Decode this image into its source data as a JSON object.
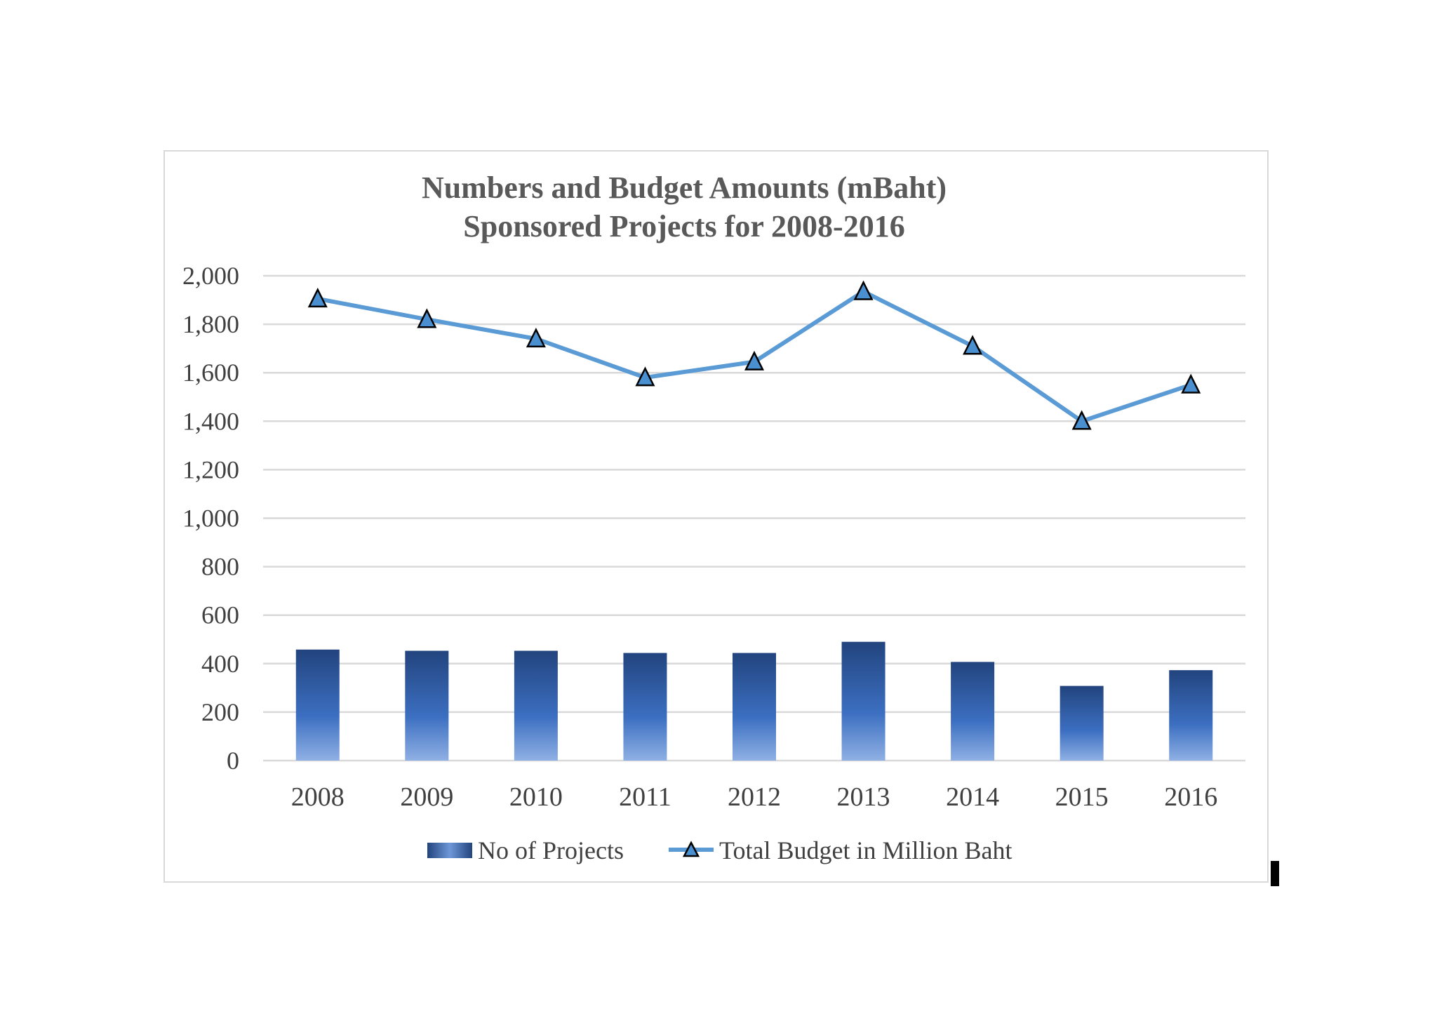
{
  "chart_data": {
    "type": "bar+line",
    "title": [
      "Numbers and Budget Amounts (mBaht)",
      "Sponsored Projects for 2008-2016"
    ],
    "categories": [
      "2008",
      "2009",
      "2010",
      "2011",
      "2012",
      "2013",
      "2014",
      "2015",
      "2016"
    ],
    "ylim": [
      0,
      2000
    ],
    "yticks": [
      0,
      200,
      400,
      600,
      800,
      1000,
      1200,
      1400,
      1600,
      1800,
      2000
    ],
    "ytick_labels": [
      "0",
      "200",
      "400",
      "600",
      "800",
      "1,000",
      "1,200",
      "1,400",
      "1,600",
      "1,800",
      "2,000"
    ],
    "grid": true,
    "legend_position": "bottom",
    "series": [
      {
        "name": "No of Projects",
        "type": "bar",
        "values": [
          458,
          453,
          453,
          444,
          444,
          490,
          407,
          308,
          373
        ]
      },
      {
        "name": "Total Budget in Million Baht",
        "type": "line",
        "marker": "triangle",
        "values": [
          1905,
          1820,
          1740,
          1580,
          1645,
          1935,
          1710,
          1400,
          1550
        ]
      }
    ],
    "colors": {
      "bar_top": "#22447e",
      "bar_mid": "#3c6fc1",
      "bar_bottom": "#8fb0e4",
      "line": "#5b9bd5",
      "marker_fill": "#4a8fd0",
      "grid": "#d9d9d9"
    }
  }
}
